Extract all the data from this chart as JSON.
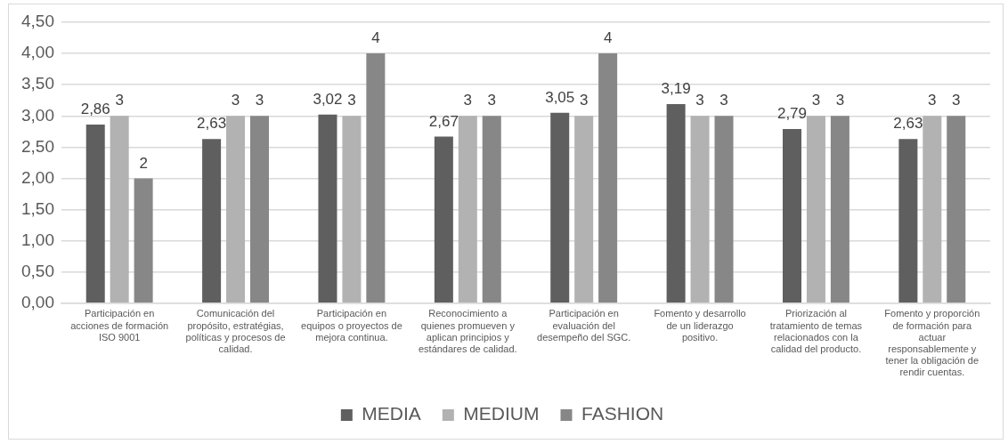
{
  "chart_data": {
    "type": "bar",
    "categories": [
      "Participación en acciones de formación ISO 9001",
      "Comunicación del propósito, estratégias, políticas y procesos de calidad.",
      "Participación en equipos o proyectos de mejora continua.",
      "Reconocimiento a quienes promueven y aplican principios y estándares de calidad.",
      "Participación en evaluación del desempeño del SGC.",
      "Fomento y desarrollo de un liderazgo positivo.",
      "Priorización al tratamiento de temas relacionados con la calidad del producto.",
      "Fomento y proporción de formación para actuar responsablemente y tener la obligación de rendir cuentas."
    ],
    "series": [
      {
        "name": "MEDIA",
        "color": "#5f5f5f",
        "values": [
          2.86,
          2.63,
          3.02,
          2.67,
          3.05,
          3.19,
          2.79,
          2.63
        ],
        "value_labels": [
          "2,86",
          "2,63",
          "3,02",
          "2,67",
          "3,05",
          "3,19",
          "2,79",
          "2,63"
        ]
      },
      {
        "name": "MEDIUM",
        "color": "#b2b2b2",
        "values": [
          3,
          3,
          3,
          3,
          3,
          3,
          3,
          3
        ],
        "value_labels": [
          "3",
          "3",
          "3",
          "3",
          "3",
          "3",
          "3",
          "3"
        ]
      },
      {
        "name": "FASHION",
        "color": "#878787",
        "values": [
          2,
          3,
          4,
          3,
          4,
          3,
          3,
          3
        ],
        "value_labels": [
          "2",
          "3",
          "4",
          "3",
          "4",
          "3",
          "3",
          "3"
        ]
      }
    ],
    "ylim": [
      0,
      4.5
    ],
    "yticks": [
      {
        "value": 0,
        "label": "0,00"
      },
      {
        "value": 0.5,
        "label": "0,50"
      },
      {
        "value": 1,
        "label": "1,00"
      },
      {
        "value": 1.5,
        "label": "1,50"
      },
      {
        "value": 2,
        "label": "2,00"
      },
      {
        "value": 2.5,
        "label": "2,50"
      },
      {
        "value": 3,
        "label": "3,00"
      },
      {
        "value": 3.5,
        "label": "3,50"
      },
      {
        "value": 4,
        "label": "4,00"
      },
      {
        "value": 4.5,
        "label": "4,50"
      }
    ],
    "grid": "y",
    "legend": "bottom"
  }
}
